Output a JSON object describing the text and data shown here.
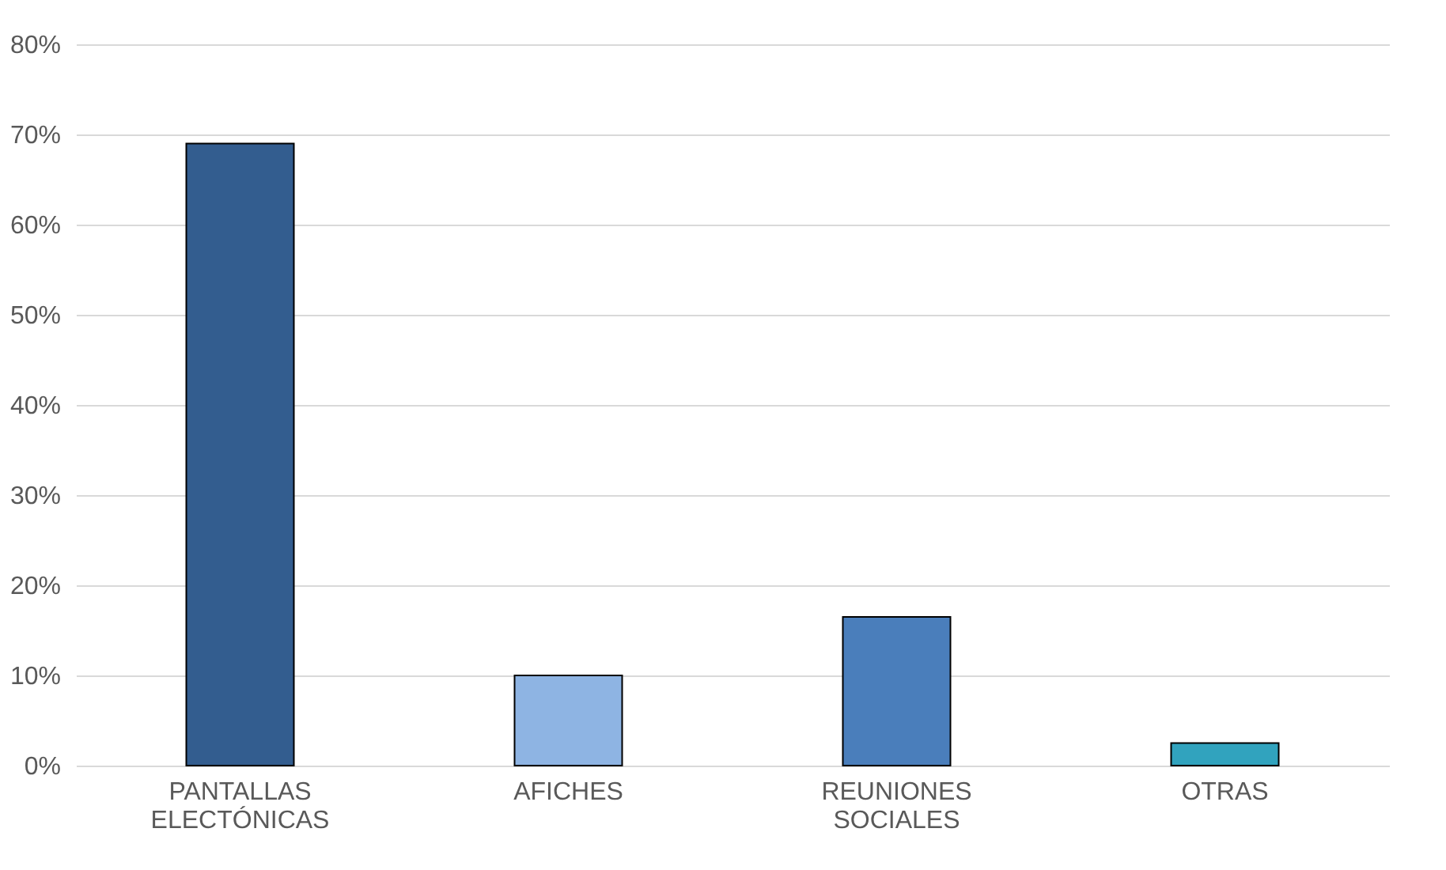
{
  "chart_data": {
    "type": "bar",
    "categories": [
      "PANTALLAS ELECTÓNICAS",
      "AFICHES",
      "REUNIONES SOCIALES",
      "OTRAS"
    ],
    "values": [
      69,
      10,
      16.5,
      2.5
    ],
    "colors": [
      "#335d8f",
      "#8eb4e3",
      "#4a7ebb",
      "#31a3be"
    ],
    "ylim": [
      0,
      80
    ],
    "yticks": [
      {
        "value": 0,
        "label": "0%"
      },
      {
        "value": 10,
        "label": "10%"
      },
      {
        "value": 20,
        "label": "20%"
      },
      {
        "value": 30,
        "label": "30%"
      },
      {
        "value": 40,
        "label": "40%"
      },
      {
        "value": 50,
        "label": "50%"
      },
      {
        "value": 60,
        "label": "60%"
      },
      {
        "value": 70,
        "label": "70%"
      },
      {
        "value": 80,
        "label": "80%"
      }
    ],
    "grid": "y"
  }
}
